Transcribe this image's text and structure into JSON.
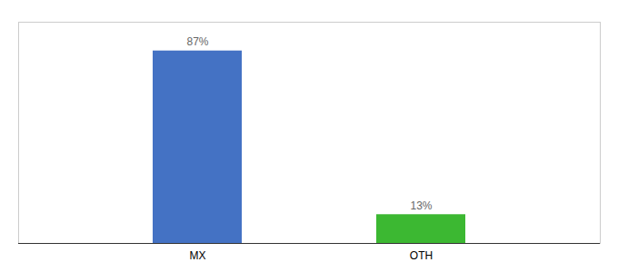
{
  "chart_data": {
    "type": "bar",
    "categories": [
      "MX",
      "OTH"
    ],
    "values": [
      87,
      13
    ],
    "value_labels": [
      "87%",
      "13%"
    ],
    "colors": [
      "#4472c4",
      "#3cb832"
    ],
    "ylim": [
      0,
      100
    ],
    "data_labels": true,
    "tick_labels": "x",
    "grid": false
  }
}
